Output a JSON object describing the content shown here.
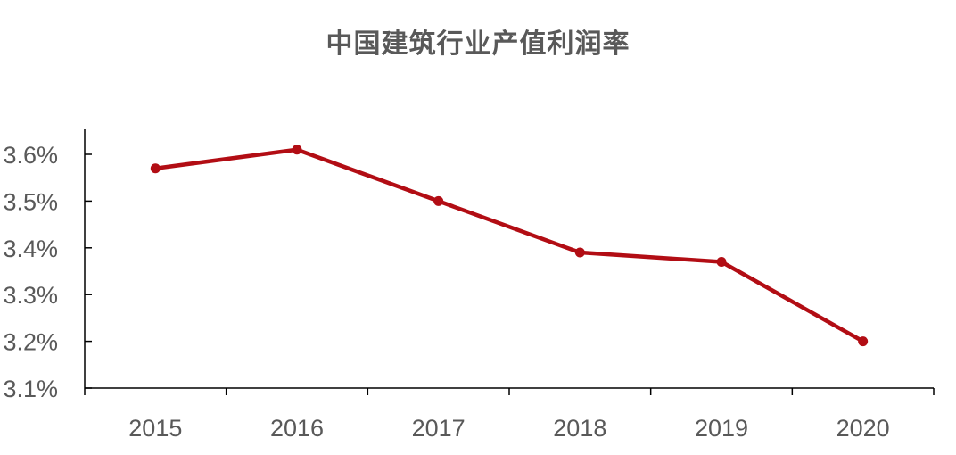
{
  "chart_data": {
    "type": "line",
    "title": "中国建筑行业产值利润率",
    "categories": [
      "2015",
      "2016",
      "2017",
      "2018",
      "2019",
      "2020"
    ],
    "series": [
      {
        "values": [
          3.57,
          3.61,
          3.5,
          3.39,
          3.37,
          3.2
        ],
        "color": "#b20d14"
      }
    ],
    "ylim": [
      3.1,
      3.65
    ],
    "yticks": [
      "3.1%",
      "3.2%",
      "3.3%",
      "3.4%",
      "3.5%",
      "3.6%"
    ],
    "ytick_values": [
      3.1,
      3.2,
      3.3,
      3.4,
      3.5,
      3.6
    ],
    "grid": false,
    "legend": "none"
  }
}
